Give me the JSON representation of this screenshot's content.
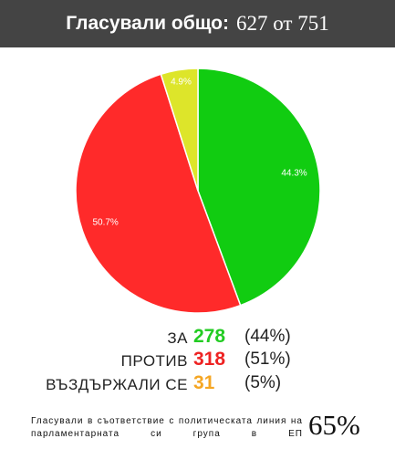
{
  "chart_data": {
    "type": "pie",
    "title": "Гласували общо:",
    "title_value": "627 от 751",
    "categories": [
      "ЗА",
      "ПРОТИВ",
      "ВЪЗДЪРЖАЛИ СЕ"
    ],
    "values": [
      44.3,
      50.7,
      4.9
    ],
    "value_labels": [
      "44.3%",
      "50.7%",
      "4.9%"
    ],
    "colors": [
      "#11cc11",
      "#ff2a2a",
      "#dde52a"
    ],
    "counts": [
      278,
      318,
      31
    ],
    "count_colors": [
      "#22cc22",
      "#ee2222",
      "#f5a623"
    ],
    "share_labels": [
      "(44%)",
      "(51%)",
      "(5%)"
    ],
    "alignment": {
      "text": "Гласували в съответствие с политическата линия на парламентарната си група в ЕП",
      "value": 65,
      "label": "65%"
    }
  }
}
